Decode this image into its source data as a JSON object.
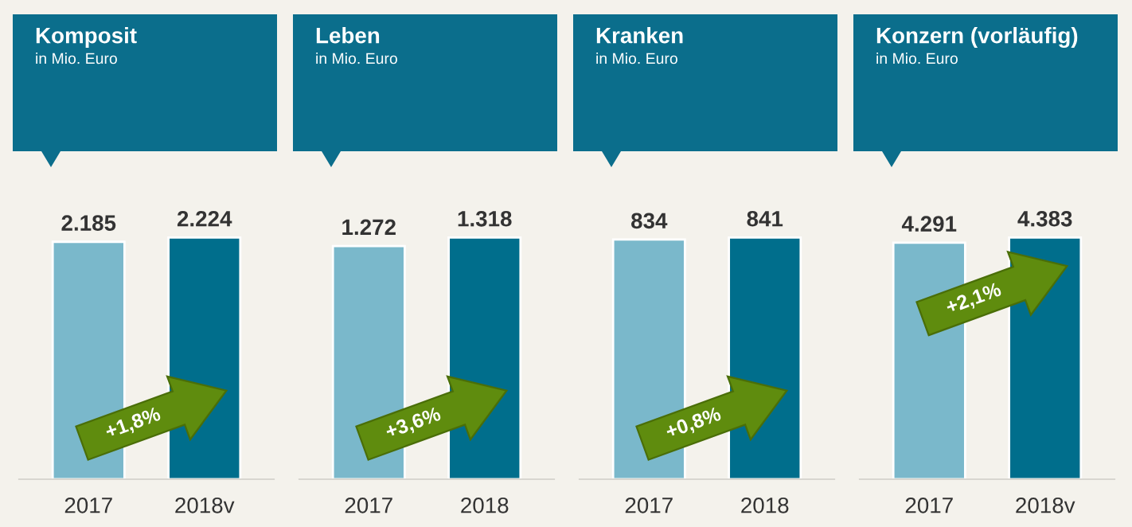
{
  "chart_data": [
    {
      "type": "bar",
      "title": "Komposit",
      "subtitle": "in Mio. Euro",
      "categories": [
        "2017",
        "2018v"
      ],
      "values": [
        2185,
        2224
      ],
      "value_labels": [
        "2.185",
        "2.224"
      ],
      "colors": [
        "#7ab8cb",
        "#006e8c"
      ],
      "annotations": [
        "+1,8%"
      ]
    },
    {
      "type": "bar",
      "title": "Leben",
      "subtitle": "in Mio. Euro",
      "categories": [
        "2017",
        "2018"
      ],
      "values": [
        1272,
        1318
      ],
      "value_labels": [
        "1.272",
        "1.318"
      ],
      "colors": [
        "#7ab8cb",
        "#006e8c"
      ],
      "annotations": [
        "+3,6%"
      ]
    },
    {
      "type": "bar",
      "title": "Kranken",
      "subtitle": "in Mio. Euro",
      "categories": [
        "2017",
        "2018"
      ],
      "values": [
        834,
        841
      ],
      "value_labels": [
        "834",
        "841"
      ],
      "colors": [
        "#7ab8cb",
        "#006e8c"
      ],
      "annotations": [
        "+0,8%"
      ]
    },
    {
      "type": "bar",
      "title": "Konzern (vorläufig)",
      "subtitle": "in Mio. Euro",
      "categories": [
        "2017",
        "2018v"
      ],
      "values": [
        4291,
        4383
      ],
      "value_labels": [
        "4.291",
        "4.383"
      ],
      "colors": [
        "#7ab8cb",
        "#006e8c"
      ],
      "annotations": [
        "+2,1%"
      ]
    }
  ]
}
